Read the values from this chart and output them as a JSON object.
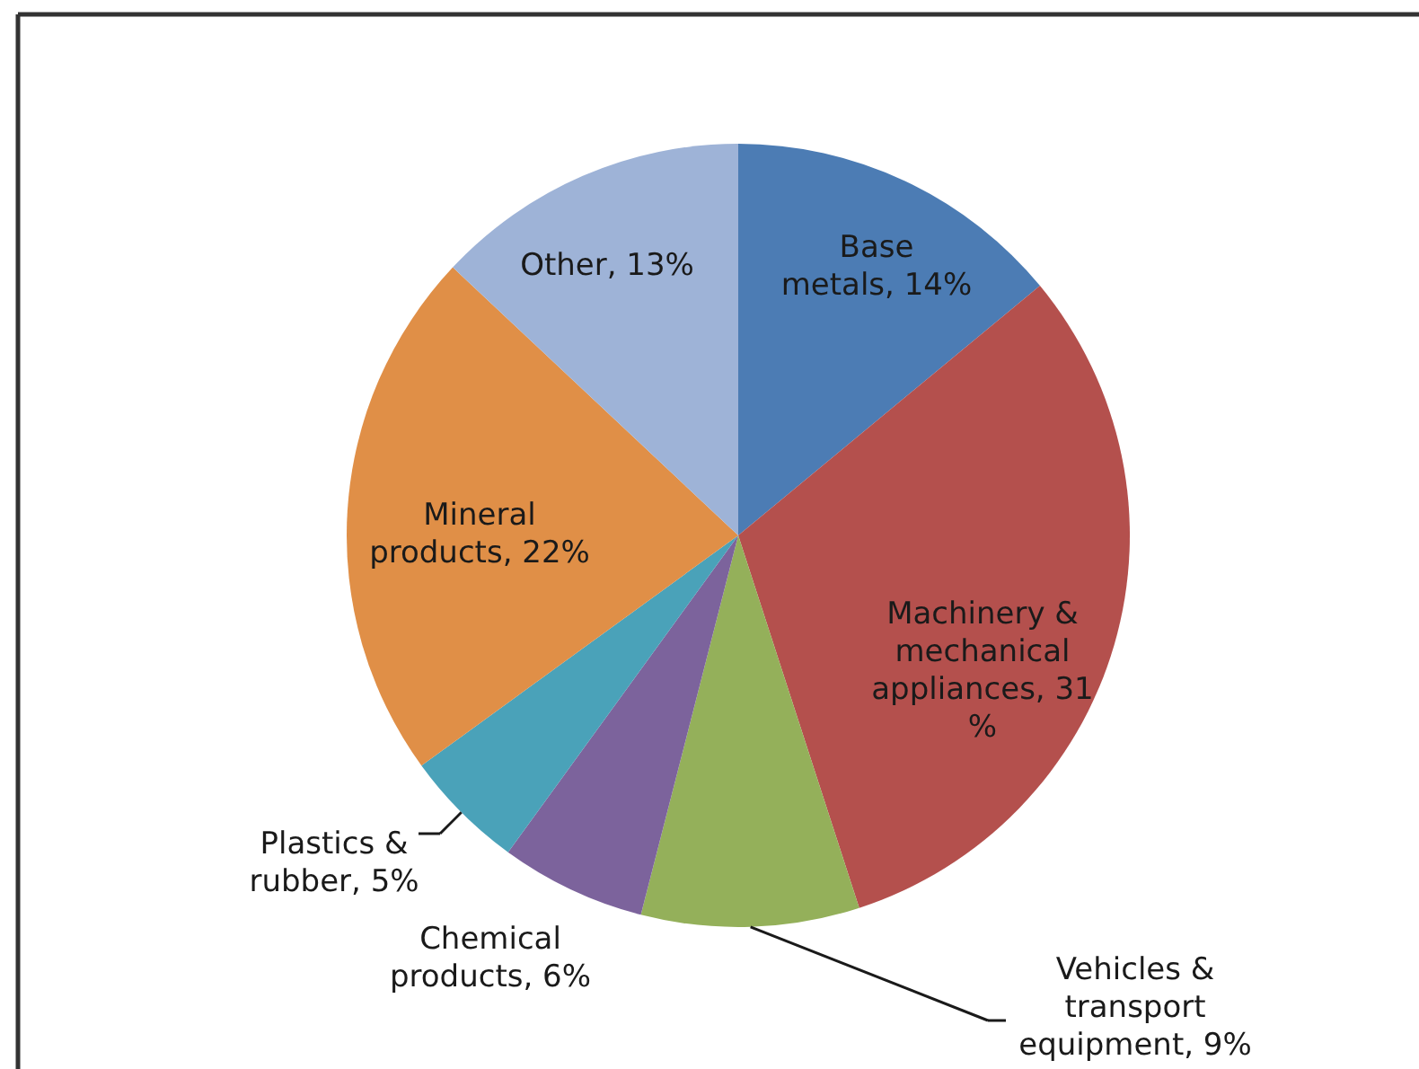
{
  "chart_data": {
    "type": "pie",
    "categories": [
      "Base metals",
      "Machinery & mechanical appliances",
      "Vehicles & transport equipment",
      "Chemical products",
      "Plastics & rubber",
      "Mineral products",
      "Other"
    ],
    "values": [
      14,
      31,
      9,
      6,
      5,
      22,
      13
    ],
    "colors": [
      "#4c7cb4",
      "#b4504d",
      "#94b05a",
      "#7c639c",
      "#4aa2b9",
      "#e08f47",
      "#9eb3d7"
    ],
    "value_labels": [
      "14%",
      "31 %",
      "9%",
      "6%",
      "5%",
      "22%",
      "13%"
    ]
  }
}
